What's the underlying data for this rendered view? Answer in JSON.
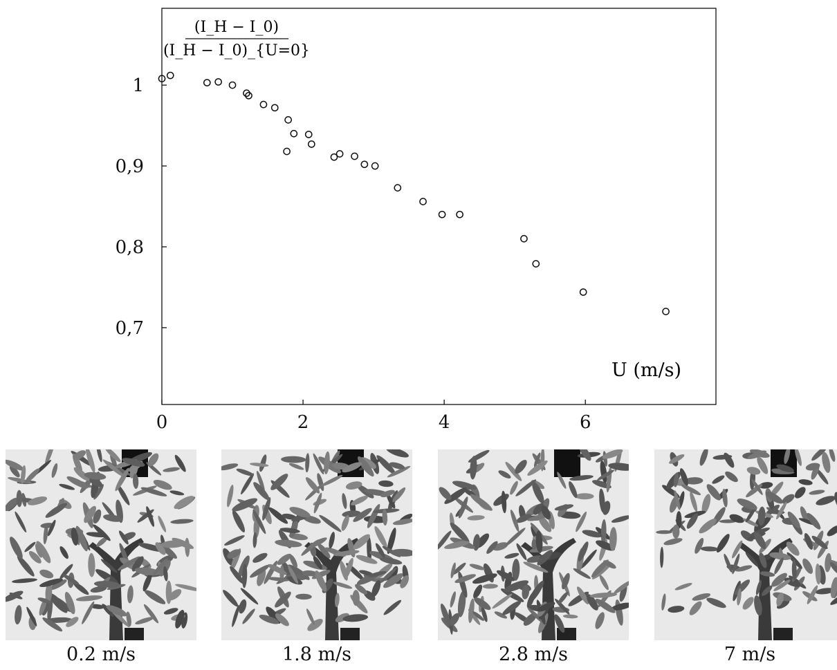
{
  "chart_data": {
    "type": "scatter",
    "xlabel": "U (m/s)",
    "ylabel": "(I_H − I_0) / (I_H − I_0)_{U=0}",
    "xlim": [
      0,
      7.85
    ],
    "ylim": [
      0.605,
      1.095
    ],
    "x_ticks": [
      0,
      2,
      4,
      6
    ],
    "x_tick_labels": [
      "0",
      "2",
      "4",
      "6"
    ],
    "y_ticks": [
      0.7,
      0.8,
      0.9,
      1.0
    ],
    "y_tick_labels": [
      "0,7",
      "0,8",
      "0,9",
      "1"
    ],
    "grid": false,
    "marker": "open-circle",
    "points": [
      {
        "x": 0.0,
        "y": 1.008
      },
      {
        "x": 0.12,
        "y": 1.012
      },
      {
        "x": 0.64,
        "y": 1.003
      },
      {
        "x": 0.8,
        "y": 1.004
      },
      {
        "x": 1.0,
        "y": 1.0
      },
      {
        "x": 1.2,
        "y": 0.99
      },
      {
        "x": 1.23,
        "y": 0.987
      },
      {
        "x": 1.44,
        "y": 0.976
      },
      {
        "x": 1.6,
        "y": 0.972
      },
      {
        "x": 1.79,
        "y": 0.957
      },
      {
        "x": 1.77,
        "y": 0.918
      },
      {
        "x": 1.87,
        "y": 0.94
      },
      {
        "x": 2.08,
        "y": 0.939
      },
      {
        "x": 2.12,
        "y": 0.927
      },
      {
        "x": 2.44,
        "y": 0.911
      },
      {
        "x": 2.52,
        "y": 0.915
      },
      {
        "x": 2.73,
        "y": 0.912
      },
      {
        "x": 2.87,
        "y": 0.902
      },
      {
        "x": 3.02,
        "y": 0.9
      },
      {
        "x": 3.34,
        "y": 0.873
      },
      {
        "x": 3.7,
        "y": 0.856
      },
      {
        "x": 3.97,
        "y": 0.84
      },
      {
        "x": 4.22,
        "y": 0.84
      },
      {
        "x": 5.13,
        "y": 0.81
      },
      {
        "x": 5.3,
        "y": 0.779
      },
      {
        "x": 5.97,
        "y": 0.744
      },
      {
        "x": 7.14,
        "y": 0.72
      }
    ]
  },
  "photos": [
    {
      "caption": "0.2 m/s",
      "icon": "tree-photo"
    },
    {
      "caption": "1.8 m/s",
      "icon": "tree-photo"
    },
    {
      "caption": "2.8 m/s",
      "icon": "tree-photo"
    },
    {
      "caption": "7 m/s",
      "icon": "tree-photo"
    }
  ]
}
